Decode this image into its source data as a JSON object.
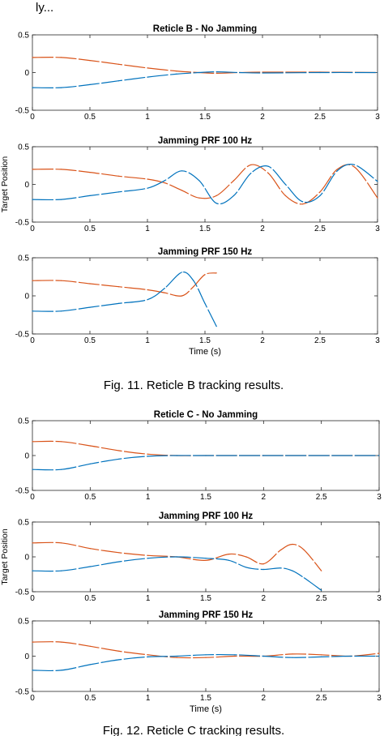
{
  "header_fragment": "ly...",
  "captions": [
    "Fig. 11. Reticle B tracking results.",
    "Fig. 12. Reticle C tracking results."
  ],
  "colors": {
    "series_1": "#D95319",
    "series_2": "#0072BD",
    "axes": "#262626"
  },
  "chart_data": [
    {
      "type": "line",
      "title": "Reticle B - No Jamming",
      "xlabel": "",
      "ylabel": "",
      "xlim": [
        0,
        3
      ],
      "ylim": [
        -0.5,
        0.5
      ],
      "xticks": [
        "0",
        "0.5",
        "1",
        "1.5",
        "2",
        "2.5",
        "3"
      ],
      "yticks": [
        "0.5",
        "0",
        "-0.5"
      ],
      "grid": false,
      "series": [
        {
          "color": "#D95319",
          "x": [
            0,
            0.25,
            0.5,
            0.75,
            1.0,
            1.25,
            1.45,
            1.6,
            1.8,
            2.0,
            2.5,
            3.0
          ],
          "y": [
            0.2,
            0.2,
            0.16,
            0.11,
            0.06,
            0.02,
            0.0,
            -0.01,
            0.0,
            0.005,
            0.005,
            0.0
          ]
        },
        {
          "color": "#0072BD",
          "x": [
            0,
            0.25,
            0.5,
            0.75,
            1.0,
            1.25,
            1.45,
            1.6,
            1.8,
            2.0,
            2.5,
            3.0
          ],
          "y": [
            -0.2,
            -0.2,
            -0.16,
            -0.11,
            -0.06,
            -0.02,
            0.0,
            0.01,
            0.0,
            -0.005,
            0.0,
            0.0
          ]
        }
      ]
    },
    {
      "type": "line",
      "title": "Jamming PRF 100 Hz",
      "xlabel": "",
      "ylabel": "Target Position",
      "xlim": [
        0,
        3
      ],
      "ylim": [
        -0.5,
        0.5
      ],
      "xticks": [
        "0",
        "0.5",
        "1",
        "1.5",
        "2",
        "2.5",
        "3"
      ],
      "yticks": [
        "0.5",
        "0",
        "-0.5"
      ],
      "grid": false,
      "series": [
        {
          "color": "#D95319",
          "x": [
            0,
            0.25,
            0.5,
            0.75,
            1.0,
            1.15,
            1.3,
            1.45,
            1.6,
            1.75,
            1.9,
            2.05,
            2.2,
            2.35,
            2.5,
            2.65,
            2.8,
            3.0
          ],
          "y": [
            0.2,
            0.2,
            0.16,
            0.11,
            0.07,
            0.02,
            -0.08,
            -0.18,
            -0.15,
            0.05,
            0.26,
            0.15,
            -0.15,
            -0.26,
            -0.1,
            0.2,
            0.23,
            -0.18
          ]
        },
        {
          "color": "#0072BD",
          "x": [
            0,
            0.25,
            0.5,
            0.75,
            1.0,
            1.15,
            1.3,
            1.45,
            1.6,
            1.75,
            1.9,
            2.05,
            2.2,
            2.35,
            2.5,
            2.65,
            2.8,
            3.0
          ],
          "y": [
            -0.2,
            -0.2,
            -0.15,
            -0.1,
            -0.05,
            0.05,
            0.18,
            0.05,
            -0.25,
            -0.15,
            0.15,
            0.24,
            0.0,
            -0.23,
            -0.15,
            0.18,
            0.26,
            0.04
          ]
        }
      ]
    },
    {
      "type": "line",
      "title": "Jamming PRF 150 Hz",
      "xlabel": "Time (s)",
      "ylabel": "",
      "xlim": [
        0,
        3
      ],
      "ylim": [
        -0.5,
        0.5
      ],
      "xticks": [
        "0",
        "0.5",
        "1",
        "1.5",
        "2",
        "2.5",
        "3"
      ],
      "yticks": [
        "0.5",
        "0",
        "-0.5"
      ],
      "grid": false,
      "series": [
        {
          "color": "#D95319",
          "x": [
            0,
            0.25,
            0.5,
            0.75,
            1.0,
            1.15,
            1.3,
            1.4,
            1.5,
            1.6
          ],
          "y": [
            0.2,
            0.2,
            0.16,
            0.12,
            0.08,
            0.04,
            0.0,
            0.12,
            0.28,
            0.3
          ]
        },
        {
          "color": "#0072BD",
          "x": [
            0,
            0.25,
            0.5,
            0.75,
            1.0,
            1.15,
            1.3,
            1.4,
            1.5,
            1.6
          ],
          "y": [
            -0.2,
            -0.2,
            -0.15,
            -0.1,
            -0.05,
            0.1,
            0.31,
            0.2,
            -0.1,
            -0.4
          ]
        }
      ]
    },
    {
      "type": "line",
      "title": "Reticle C - No Jamming",
      "xlabel": "",
      "ylabel": "",
      "xlim": [
        0,
        3
      ],
      "ylim": [
        -0.5,
        0.5
      ],
      "xticks": [
        "0",
        "0.5",
        "1",
        "1.5",
        "2",
        "2.5",
        "3"
      ],
      "yticks": [
        "0.5",
        "0",
        "-0.5"
      ],
      "grid": false,
      "series": [
        {
          "color": "#D95319",
          "x": [
            0,
            0.25,
            0.5,
            0.75,
            1.0,
            1.25,
            1.5,
            2.0,
            3.0
          ],
          "y": [
            0.2,
            0.2,
            0.14,
            0.07,
            0.02,
            0.0,
            0.0,
            0.0,
            0.0
          ]
        },
        {
          "color": "#0072BD",
          "x": [
            0,
            0.25,
            0.5,
            0.75,
            1.0,
            1.25,
            1.5,
            2.0,
            3.0
          ],
          "y": [
            -0.2,
            -0.2,
            -0.12,
            -0.05,
            -0.01,
            0.0,
            0.0,
            0.0,
            0.0
          ]
        }
      ]
    },
    {
      "type": "line",
      "title": "Jamming PRF 100 Hz",
      "xlabel": "",
      "ylabel": "Target Position",
      "xlim": [
        0,
        3
      ],
      "ylim": [
        -0.5,
        0.5
      ],
      "xticks": [
        "0",
        "0.5",
        "1",
        "1.5",
        "2",
        "2.5",
        "3"
      ],
      "yticks": [
        "0.5",
        "0",
        "-0.5"
      ],
      "grid": false,
      "series": [
        {
          "color": "#D95319",
          "x": [
            0,
            0.25,
            0.5,
            0.75,
            1.0,
            1.25,
            1.5,
            1.7,
            1.85,
            2.0,
            2.15,
            2.25,
            2.35,
            2.5
          ],
          "y": [
            0.2,
            0.2,
            0.12,
            0.06,
            0.02,
            0.0,
            -0.05,
            0.04,
            0.0,
            -0.1,
            0.1,
            0.18,
            0.1,
            -0.2
          ]
        },
        {
          "color": "#0072BD",
          "x": [
            0,
            0.25,
            0.5,
            0.75,
            1.0,
            1.25,
            1.5,
            1.7,
            1.85,
            2.0,
            2.15,
            2.25,
            2.35,
            2.5
          ],
          "y": [
            -0.2,
            -0.2,
            -0.14,
            -0.07,
            -0.02,
            0.0,
            -0.02,
            -0.05,
            -0.15,
            -0.18,
            -0.16,
            -0.2,
            -0.3,
            -0.48
          ]
        }
      ]
    },
    {
      "type": "line",
      "title": "Jamming PRF 150 Hz",
      "xlabel": "Time (s)",
      "ylabel": "",
      "xlim": [
        0,
        3
      ],
      "ylim": [
        -0.5,
        0.5
      ],
      "xticks": [
        "0",
        "0.5",
        "1",
        "1.5",
        "2",
        "2.5",
        "3"
      ],
      "yticks": [
        "0.5",
        "0",
        "-0.5"
      ],
      "grid": false,
      "series": [
        {
          "color": "#D95319",
          "x": [
            0,
            0.25,
            0.5,
            0.75,
            1.0,
            1.25,
            1.5,
            1.75,
            2.0,
            2.25,
            2.5,
            2.75,
            3.0
          ],
          "y": [
            0.2,
            0.2,
            0.14,
            0.07,
            0.02,
            -0.02,
            -0.02,
            0.0,
            0.0,
            0.03,
            0.02,
            0.0,
            0.04
          ]
        },
        {
          "color": "#0072BD",
          "x": [
            0,
            0.25,
            0.5,
            0.75,
            1.0,
            1.25,
            1.5,
            1.75,
            2.0,
            2.25,
            2.5,
            2.75,
            3.0
          ],
          "y": [
            -0.2,
            -0.2,
            -0.12,
            -0.05,
            -0.01,
            0.0,
            0.02,
            0.02,
            0.0,
            -0.02,
            -0.01,
            0.0,
            0.0
          ]
        }
      ]
    }
  ]
}
